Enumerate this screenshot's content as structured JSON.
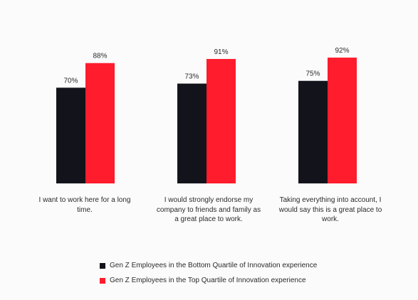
{
  "chart_data": {
    "type": "bar",
    "categories": [
      "I want to work here for a long time.",
      "I would strongly endorse my company to friends and family as a great place to work.",
      "Taking everything into account, I would say this is a great place to work."
    ],
    "series": [
      {
        "name": "Gen Z Employees in the Bottom Quartile of Innovation experience",
        "color": "#13141b",
        "values": [
          70,
          73,
          75
        ],
        "labels": [
          "70%",
          "73%",
          "75%"
        ]
      },
      {
        "name": "Gen Z Employees in the Top Quartile of Innovation experience",
        "color": "#ff1c2c",
        "values": [
          88,
          91,
          92
        ],
        "labels": [
          "88%",
          "91%",
          "92%"
        ]
      }
    ],
    "ylim": [
      0,
      100
    ],
    "grid": false,
    "legend_position": "bottom-left",
    "unit": "%"
  }
}
